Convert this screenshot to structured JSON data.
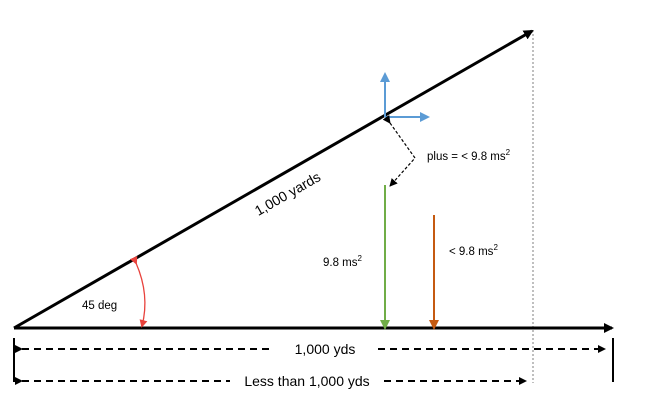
{
  "labels": {
    "hypotenuse": "1,000 yards",
    "angle": "45 deg",
    "gravity": "9.8 ms",
    "gravity_exp": "2",
    "reduced_gravity": "< 9.8 ms",
    "reduced_gravity_exp": "2",
    "plus_label": "plus = < 9.8 ms",
    "plus_label_exp": "2",
    "base_distance": "1,000 yds",
    "less_distance": "Less than 1,000 yds"
  },
  "colors": {
    "line": "#000000",
    "angle_arc": "#e8423c",
    "vectors": "#5b9bd5",
    "gravity_arrow": "#70ad47",
    "reduced_arrow": "#c55a11",
    "dotted_guide": "#7f7f7f"
  }
}
